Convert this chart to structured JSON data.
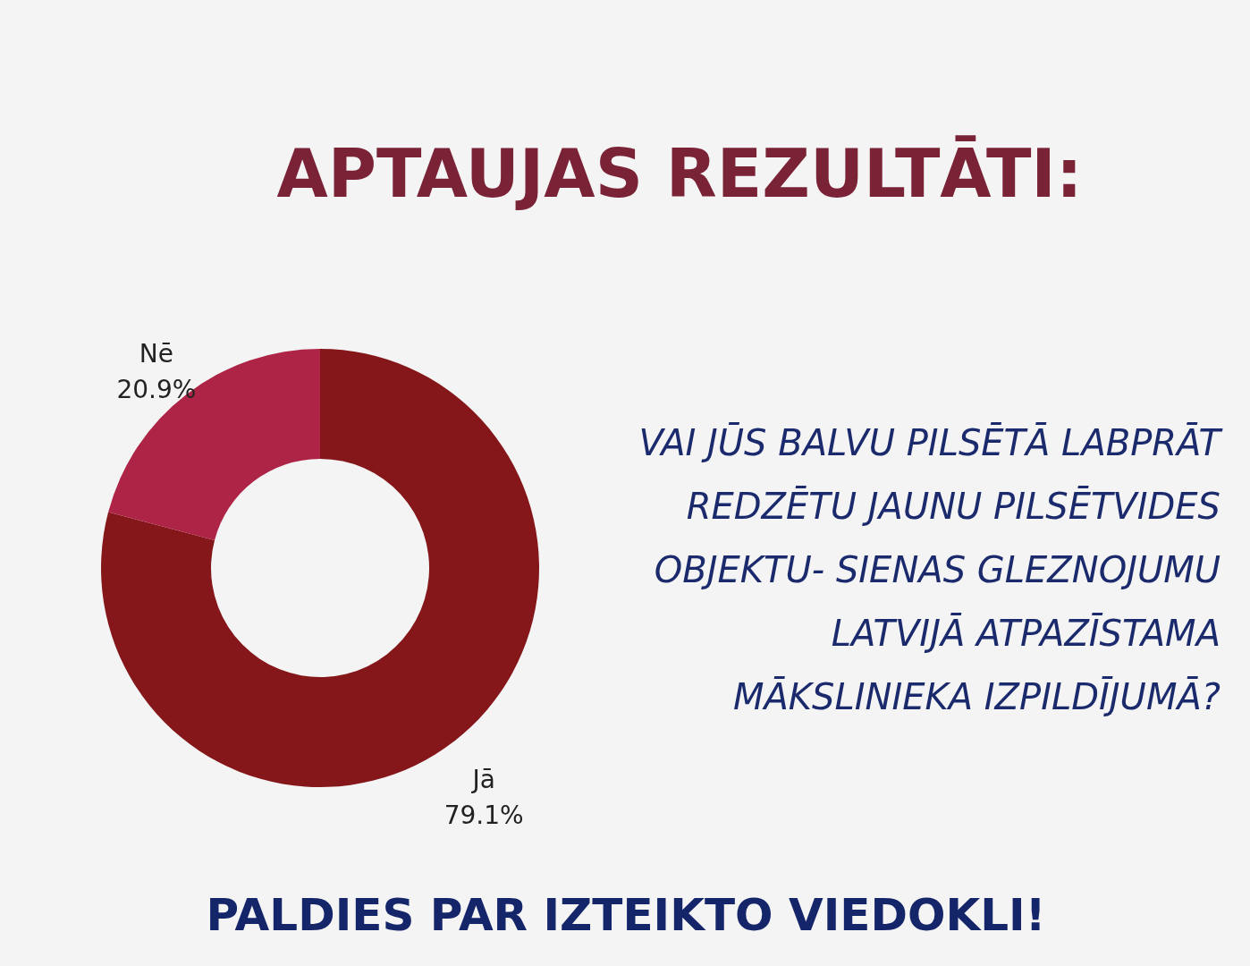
{
  "chart_data": {
    "type": "donut",
    "title": "APTAUJAS REZULTĀTI:",
    "subtitle": "VAI JŪS BALVU PILSĒTĀ LABPRĀT REDZĒTU JAUNU PILSĒTVIDES OBJEKTU- SIENAS GLEZNOJUMU LATVIJĀ ATPAZĪSTAMA MĀKSLINIEKA IZPILDĪJUMĀ?",
    "categories": [
      "Jā",
      "Nē"
    ],
    "values": [
      79.1,
      20.9
    ],
    "value_labels": [
      "79.1%",
      "20.9%"
    ],
    "colors": [
      "#85171a",
      "#ae2447"
    ],
    "annotations": [
      "PALDIES PAR IZTEIKTO VIEDOKLI!"
    ],
    "legend": false
  }
}
